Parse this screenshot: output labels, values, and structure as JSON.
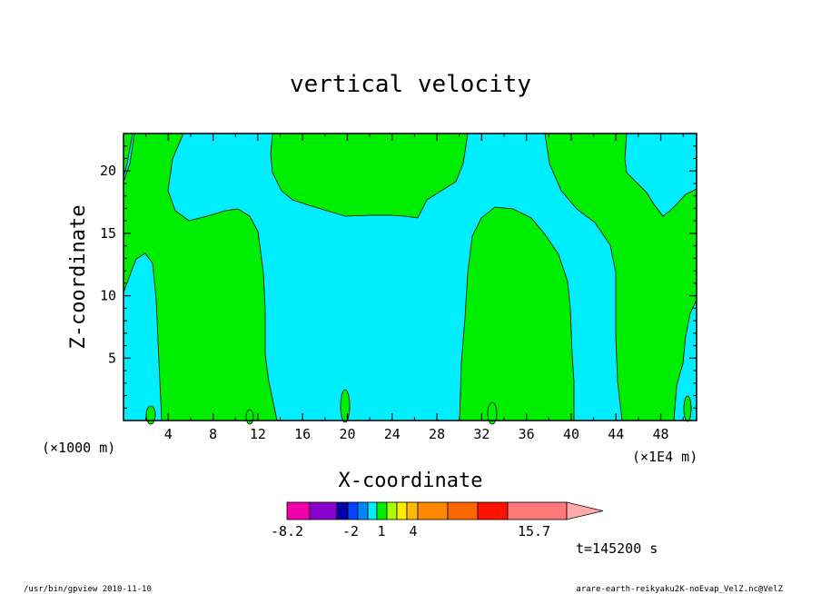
{
  "chart_data": {
    "type": "heatmap",
    "title": "vertical velocity",
    "xlabel": "X-coordinate",
    "ylabel": "Z-coordinate",
    "x_unit_left": "(×1000 m)",
    "x_unit_right": "(×1E4 m)",
    "xlim": [
      0,
      51.2
    ],
    "ylim": [
      0,
      23
    ],
    "xticks": [
      4,
      8,
      12,
      16,
      20,
      24,
      28,
      32,
      36,
      40,
      44,
      48
    ],
    "yticks": [
      5,
      10,
      15,
      20
    ],
    "regions": [
      {
        "name": "positive",
        "color": "#00ee00"
      },
      {
        "name": "negative",
        "color": "#00eeff"
      }
    ],
    "colorbar": {
      "colors": [
        "#ee00aa",
        "#8800cc",
        "#0000aa",
        "#0044ff",
        "#0088ff",
        "#00eeff",
        "#00ee00",
        "#aaff00",
        "#ffee00",
        "#ffbb00",
        "#ff8800",
        "#ff6600",
        "#ff1100",
        "#ff7777",
        "#ffaaaa"
      ],
      "tick_labels": [
        "-8.2",
        "-2",
        "1",
        "4",
        "15.7"
      ]
    },
    "time_label": "t=145200 s"
  },
  "footer": {
    "left": "/usr/bin/gpview   2010-11-10",
    "right": "arare-earth-reikyaku2K-noEvap_VelZ.nc@VelZ"
  }
}
